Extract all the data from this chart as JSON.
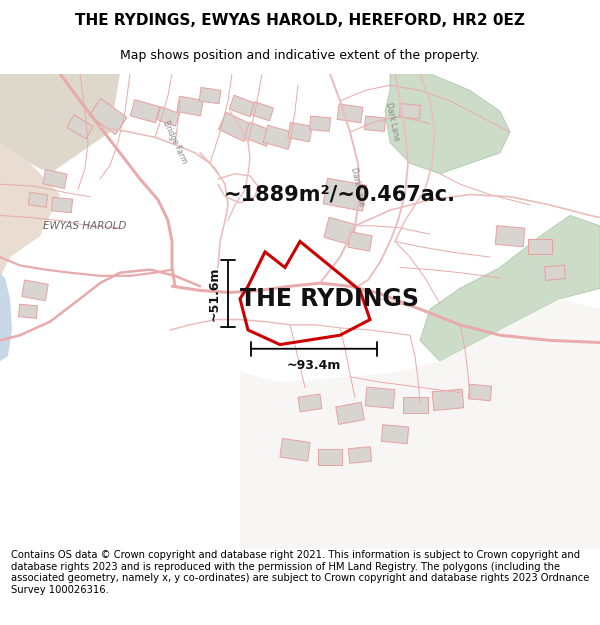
{
  "title_line1": "THE RYDINGS, EWYAS HAROLD, HEREFORD, HR2 0EZ",
  "title_line2": "Map shows position and indicative extent of the property.",
  "property_name": "THE RYDINGS",
  "area_text": "~1889m²/~0.467ac.",
  "dim_horizontal": "~93.4m",
  "dim_vertical": "~51.6m",
  "footer_text": "Contains OS data © Crown copyright and database right 2021. This information is subject to Crown copyright and database rights 2023 and is reproduced with the permission of HM Land Registry. The polygons (including the associated geometry, namely x, y co-ordinates) are subject to Crown copyright and database rights 2023 Ordnance Survey 100026316.",
  "map_bg": "#f8f4f0",
  "road_color": "#e8aaaa",
  "road_color2": "#ebbcbc",
  "plot_edgecolor": "#cc0000",
  "building_face": "#d8d4d0",
  "building_edge": "#e8a0a0",
  "green_face": "#d8e8d0",
  "tan_face": "#e8ddd0",
  "blue_face": "#c8d8e8",
  "text_color": "#000000",
  "label_color": "#888888",
  "title_fontsize": 11,
  "subtitle_fontsize": 9,
  "area_fontsize": 15,
  "property_fontsize": 17,
  "dim_fontsize": 9,
  "footer_fontsize": 7.2,
  "road_lw": 1.2,
  "plot_lw": 2.2
}
